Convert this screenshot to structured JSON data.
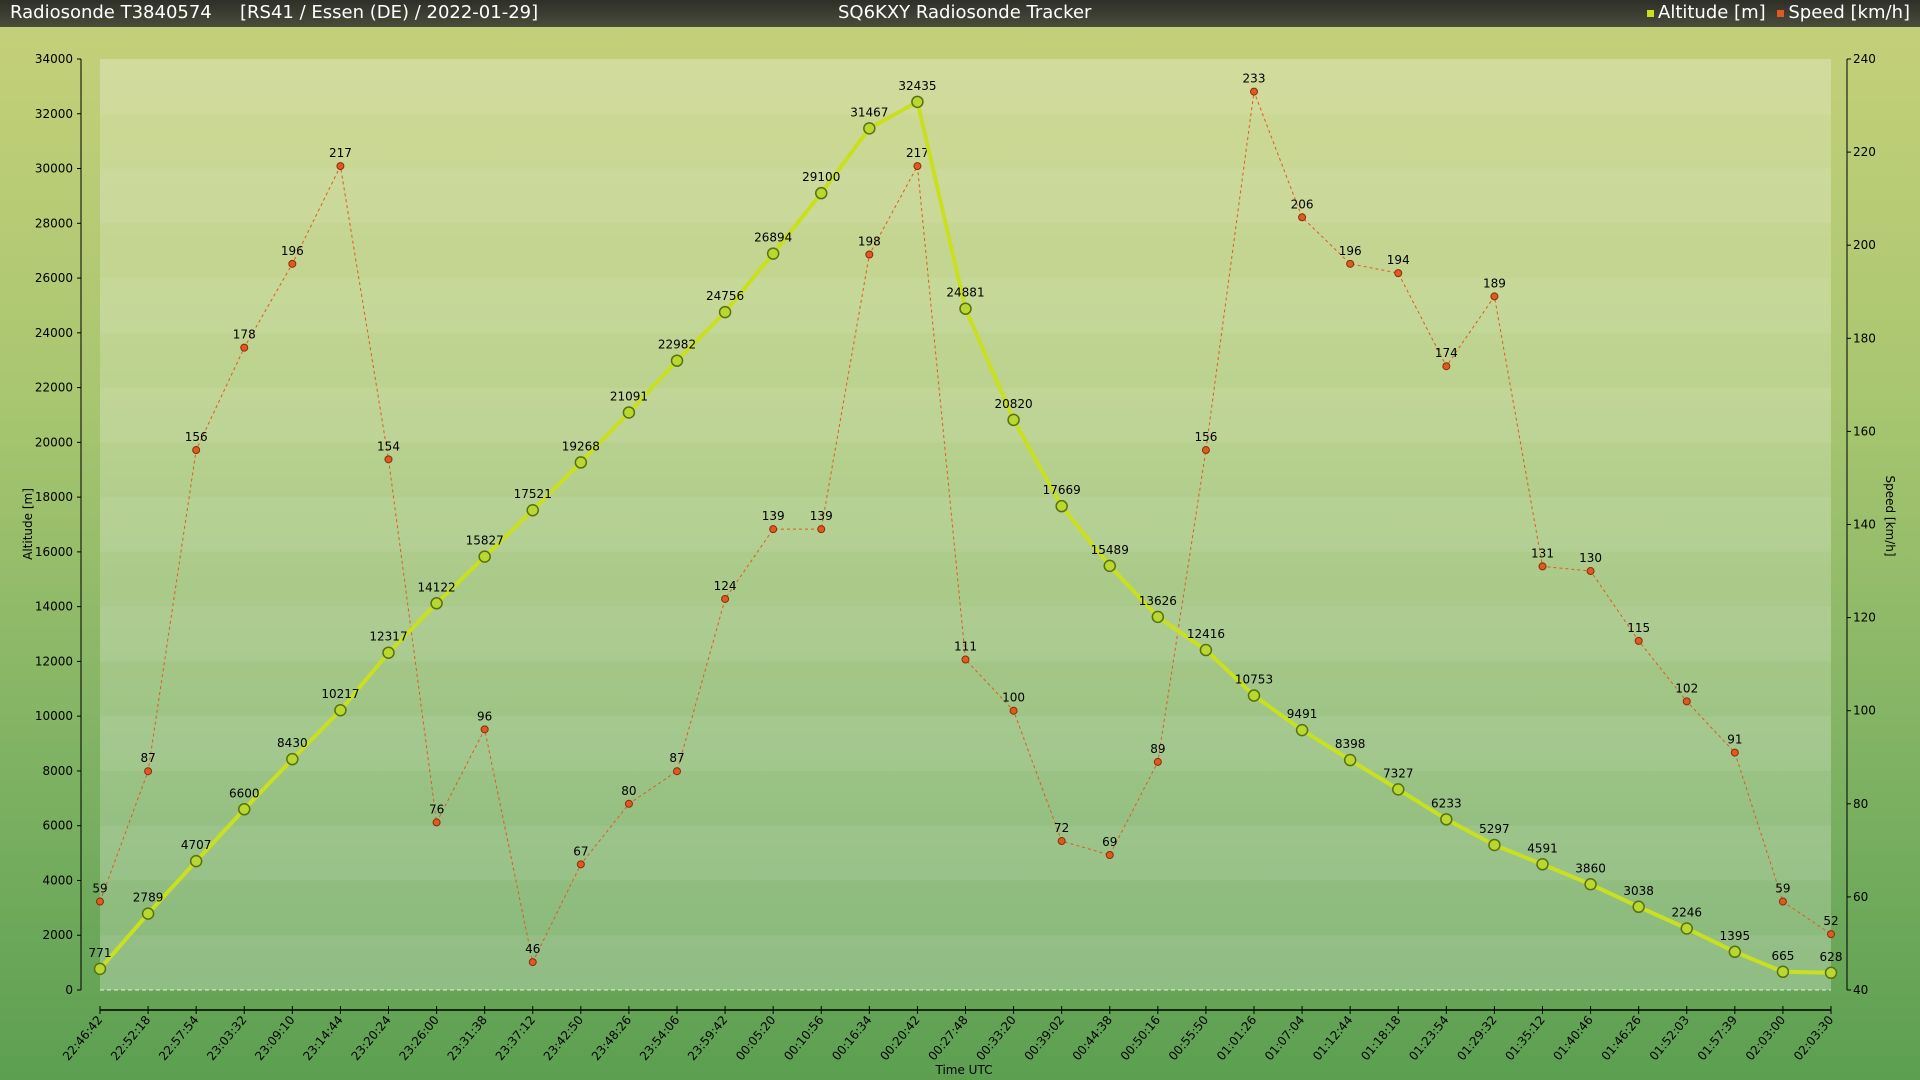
{
  "header": {
    "title": "Radiosonde T3840574",
    "subtitle": "[RS41 / Essen (DE) / 2022-01-29]",
    "app_title": "SQ6KXY Radiosonde Tracker"
  },
  "chart_data": {
    "type": "line",
    "title": "SQ6KXY Radiosonde Tracker",
    "xlabel": "Time UTC",
    "ylabel": "Altitude [m]",
    "y2label": "Speed [km/h]",
    "ylim": [
      0,
      34000
    ],
    "y2lim": [
      40,
      240
    ],
    "yticks": [
      0,
      2000,
      4000,
      6000,
      8000,
      10000,
      12000,
      14000,
      16000,
      18000,
      20000,
      22000,
      24000,
      26000,
      28000,
      30000,
      32000,
      34000
    ],
    "y2ticks": [
      40,
      60,
      80,
      100,
      120,
      140,
      160,
      180,
      200,
      220,
      240
    ],
    "legend_position": "top-right",
    "categories": [
      "22:46:42",
      "22:52:18",
      "22:57:54",
      "23:03:32",
      "23:09:10",
      "23:14:44",
      "23:20:24",
      "23:26:00",
      "23:31:38",
      "23:37:12",
      "23:42:50",
      "23:48:26",
      "23:54:06",
      "23:59:42",
      "00:05:20",
      "00:10:56",
      "00:16:34",
      "00:20:42",
      "00:27:48",
      "00:33:20",
      "00:39:02",
      "00:44:38",
      "00:50:16",
      "00:55:50",
      "01:01:26",
      "01:07:04",
      "01:12:44",
      "01:18:18",
      "01:23:54",
      "01:29:32",
      "01:35:12",
      "01:40:46",
      "01:46:26",
      "01:52:03",
      "01:57:39",
      "02:03:00",
      "02:03:30"
    ],
    "series": [
      {
        "name": "Altitude [m]",
        "axis": "left",
        "color": "#c8e020",
        "values": [
          771,
          2789,
          4707,
          6600,
          8430,
          10217,
          12317,
          14122,
          15827,
          17521,
          19268,
          21091,
          22982,
          24756,
          26894,
          29100,
          31467,
          32435,
          24881,
          20820,
          17669,
          15489,
          13626,
          12416,
          10753,
          9491,
          8398,
          7327,
          6233,
          5297,
          4591,
          3860,
          3038,
          2246,
          1395,
          665,
          628
        ]
      },
      {
        "name": "Speed [km/h]",
        "axis": "right",
        "color": "#e05a20",
        "values": [
          59,
          87,
          156,
          178,
          196,
          217,
          154,
          76,
          96,
          46,
          67,
          80,
          87,
          124,
          139,
          139,
          198,
          217,
          111,
          100,
          72,
          69,
          89,
          156,
          233,
          206,
          196,
          194,
          174,
          189,
          131,
          130,
          115,
          102,
          91,
          59,
          52
        ]
      }
    ]
  }
}
